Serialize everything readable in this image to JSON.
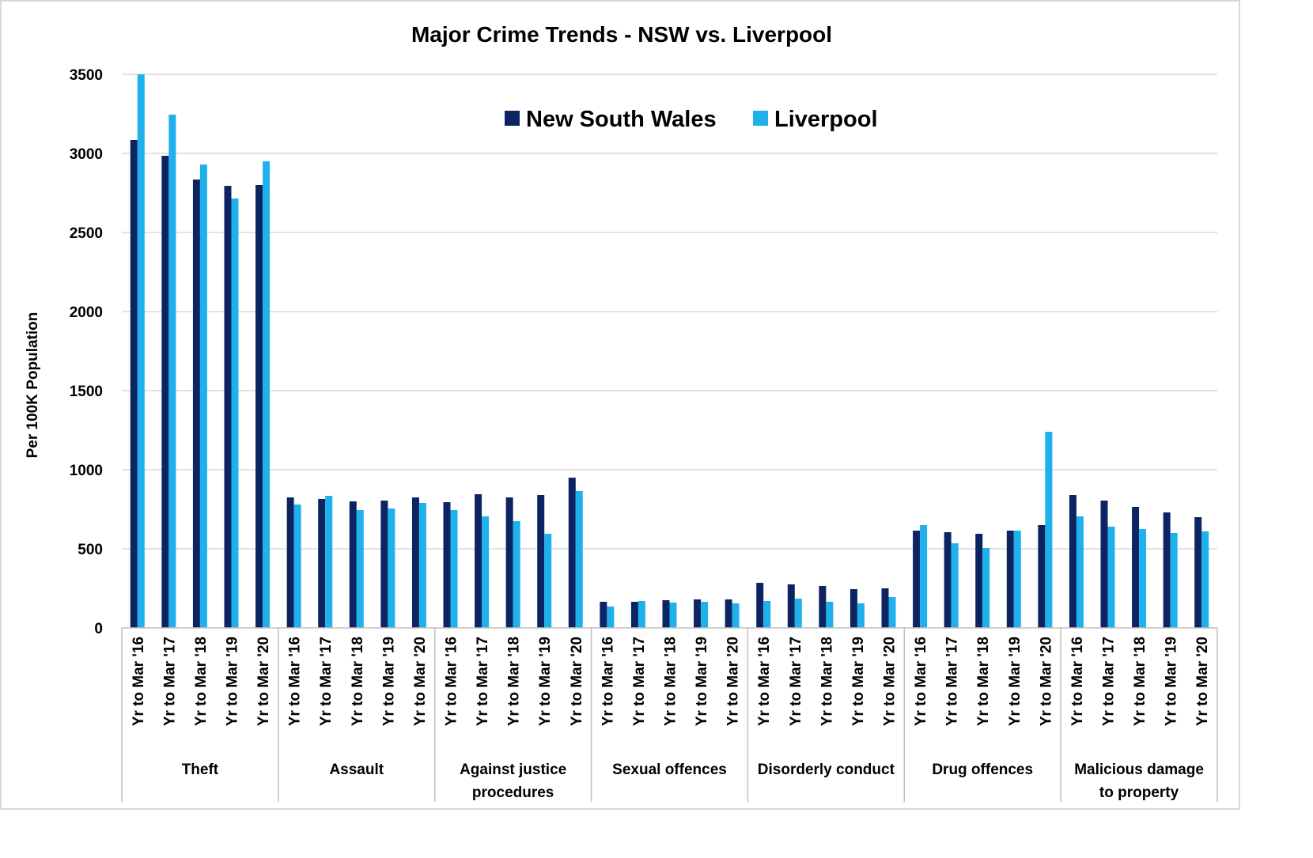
{
  "chart_data": {
    "type": "bar",
    "title": "Major Crime Trends - NSW vs. Liverpool",
    "xlabel": "",
    "ylabel": "Per 100K Population",
    "ylim": [
      0,
      3500
    ],
    "yticks": [
      0,
      500,
      1000,
      1500,
      2000,
      2500,
      3000,
      3500
    ],
    "grid": true,
    "legend_position": "top-center",
    "periods": [
      "Yr to Mar '16",
      "Yr to Mar '17",
      "Yr to Mar '18",
      "Yr to Mar '19",
      "Yr to Mar '20"
    ],
    "groups": [
      {
        "label_lines": [
          "Theft"
        ]
      },
      {
        "label_lines": [
          "Assault"
        ]
      },
      {
        "label_lines": [
          "Against justice",
          "procedures"
        ]
      },
      {
        "label_lines": [
          "Sexual offences"
        ]
      },
      {
        "label_lines": [
          "Disorderly conduct"
        ]
      },
      {
        "label_lines": [
          "Drug offences"
        ]
      },
      {
        "label_lines": [
          "Malicious damage",
          "to property"
        ]
      }
    ],
    "series": [
      {
        "name": "New South Wales",
        "color": "#0c2461",
        "values": [
          3085,
          2985,
          2835,
          2795,
          2800,
          825,
          815,
          800,
          805,
          825,
          795,
          845,
          825,
          840,
          950,
          165,
          165,
          175,
          180,
          180,
          285,
          275,
          265,
          245,
          250,
          615,
          605,
          595,
          615,
          650,
          840,
          805,
          765,
          730,
          700
        ]
      },
      {
        "name": "Liverpool",
        "color": "#1fb1ec",
        "values": [
          3500,
          3245,
          2930,
          2715,
          2950,
          780,
          835,
          745,
          755,
          790,
          745,
          705,
          675,
          595,
          865,
          135,
          170,
          160,
          165,
          155,
          170,
          185,
          165,
          155,
          195,
          650,
          535,
          505,
          615,
          1240,
          705,
          640,
          625,
          600,
          610
        ]
      }
    ]
  }
}
